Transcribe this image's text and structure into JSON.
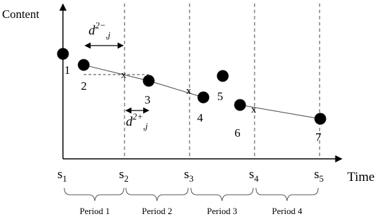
{
  "axes": {
    "y_label": "Content",
    "x_label": "Time"
  },
  "ticks": [
    {
      "base": "s",
      "sub": "1"
    },
    {
      "base": "s",
      "sub": "2"
    },
    {
      "base": "s",
      "sub": "3"
    },
    {
      "base": "s",
      "sub": "4"
    },
    {
      "base": "s",
      "sub": "5"
    }
  ],
  "periods": [
    "Period 1",
    "Period 2",
    "Period 3",
    "Period 4"
  ],
  "points": [
    "1",
    "2",
    "3",
    "4",
    "5",
    "6",
    "7"
  ],
  "interpolation_marker": "x",
  "distance_labels": {
    "minus": {
      "base": "d",
      "sup": "2−",
      "sub": ",j"
    },
    "plus": {
      "base": "d",
      "sup": "2+",
      "sub": ",j"
    }
  }
}
